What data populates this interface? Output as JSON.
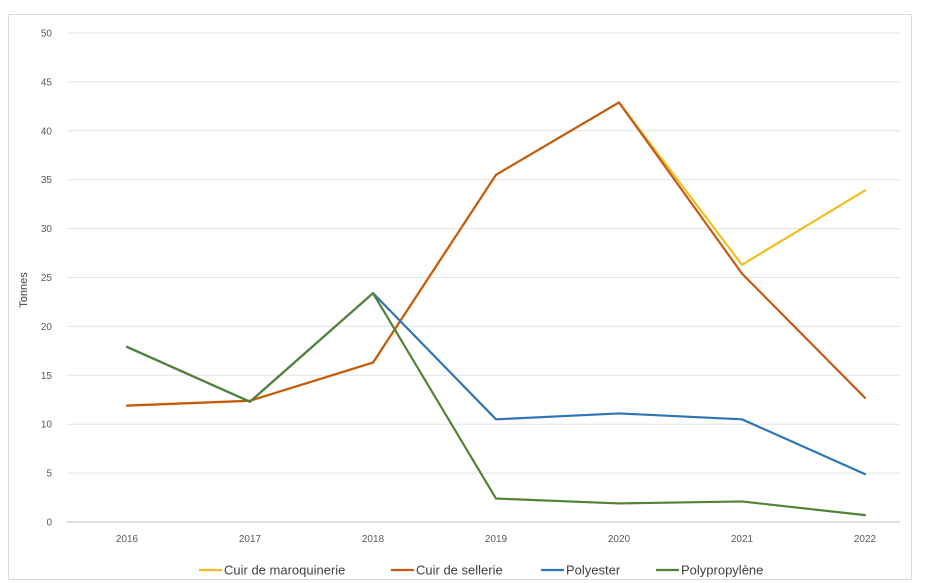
{
  "chart_data": {
    "type": "line",
    "title": "",
    "xlabel": "",
    "ylabel": "Tonnes",
    "ylim": [
      0,
      50
    ],
    "yticks": [
      0,
      5,
      10,
      15,
      20,
      25,
      30,
      35,
      40,
      45,
      50
    ],
    "categories": [
      "2016",
      "2017",
      "2018",
      "2019",
      "2020",
      "2021",
      "2022"
    ],
    "grid": true,
    "legend": "bottom",
    "series": [
      {
        "name": "Cuir de maroquinerie",
        "color": "#f0c020",
        "values": [
          11.9,
          12.4,
          16.3,
          35.5,
          42.9,
          26.3,
          33.9
        ]
      },
      {
        "name": "Cuir de sellerie",
        "color": "#c55a11",
        "values": [
          11.9,
          12.4,
          16.3,
          35.5,
          42.9,
          25.4,
          12.7
        ]
      },
      {
        "name": "Polyester",
        "color": "#2e75b6",
        "values": [
          17.9,
          12.3,
          23.4,
          10.5,
          11.1,
          10.5,
          4.9
        ]
      },
      {
        "name": "Polypropylène",
        "color": "#548235",
        "values": [
          17.9,
          12.3,
          23.4,
          2.4,
          1.9,
          2.1,
          0.7
        ]
      }
    ]
  }
}
